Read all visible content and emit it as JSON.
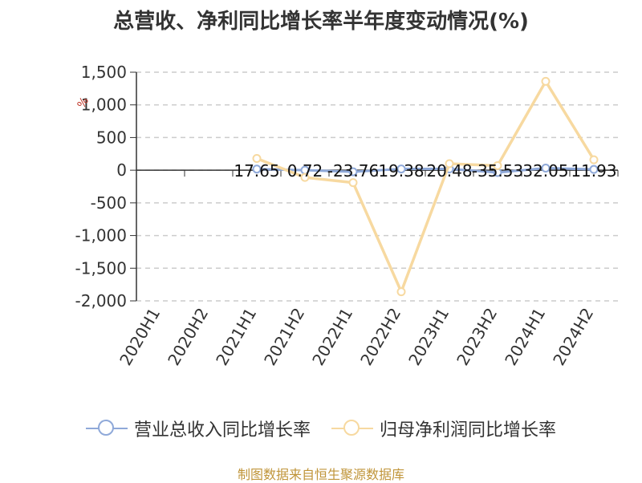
{
  "title": "总营收、净利同比增长率半年度变动情况(%)",
  "source": "制图数据来自恒生聚源数据库",
  "y_unit_mark": "%",
  "chart_data": {
    "type": "line",
    "title": "总营收、净利同比增长率半年度变动情况(%)",
    "categories": [
      "2020H1",
      "2020H2",
      "2021H1",
      "2021H2",
      "2022H1",
      "2022H2",
      "2023H1",
      "2023H2",
      "2024H1",
      "2024H2"
    ],
    "ylim": [
      -2000,
      1500
    ],
    "yticks": [
      1500,
      1000,
      500,
      0,
      -500,
      -1000,
      -1500,
      -2000
    ],
    "ytick_labels": [
      "1,500",
      "1,000",
      "500",
      "0",
      "-500",
      "-1,000",
      "-1,500",
      "-2,000"
    ],
    "grid": true,
    "legend_position": "bottom",
    "series": [
      {
        "name": "营业总收入同比增长率",
        "color": "#8fa9d9",
        "values": [
          null,
          null,
          17.65,
          0.72,
          -23.76,
          19.38,
          20.48,
          -35.53,
          32.05,
          11.93
        ],
        "labels": [
          "",
          "",
          "17.65",
          "0.72",
          "-23.76",
          "19.38",
          "20.48",
          "-35.53",
          "32.05",
          "11.93"
        ]
      },
      {
        "name": "归母净利润同比增长率",
        "color": "#f7d9a0",
        "values": [
          null,
          null,
          180,
          -110,
          -190,
          -1860,
          100,
          70,
          1360,
          160
        ]
      }
    ]
  }
}
